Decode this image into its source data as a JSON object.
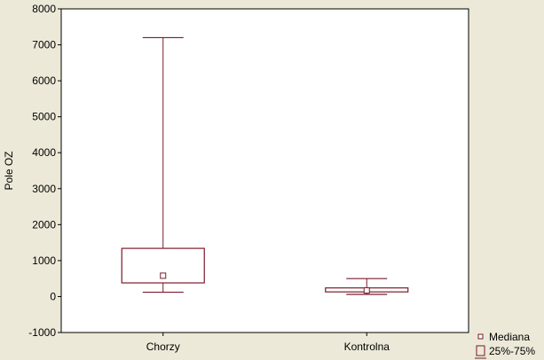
{
  "chart_data": {
    "type": "box",
    "title": "",
    "xlabel": "",
    "ylabel": "Pole OZ",
    "ylim": [
      -1000,
      8000
    ],
    "yticks": [
      "-1000",
      "0",
      "1000",
      "2000",
      "3000",
      "4000",
      "5000",
      "6000",
      "7000",
      "8000"
    ],
    "grid": true,
    "legend_position": "bottom-right",
    "categories": [
      "Chorzy",
      "Kontrolna"
    ],
    "boxes": [
      {
        "category": "Chorzy",
        "min": 120,
        "q1": 380,
        "median": 580,
        "q3": 1340,
        "max": 7200
      },
      {
        "category": "Kontrolna",
        "min": 60,
        "q1": 130,
        "median": 170,
        "q3": 240,
        "max": 500
      }
    ],
    "legend": [
      {
        "marker": "small-square",
        "label": "Mediana"
      },
      {
        "marker": "box",
        "label": "25%-75%"
      }
    ],
    "colors": {
      "series": "#7A1B2C",
      "background": "#ECE9D8",
      "plot_area": "#FFFFFF",
      "grid": "#C8C8C8"
    }
  }
}
